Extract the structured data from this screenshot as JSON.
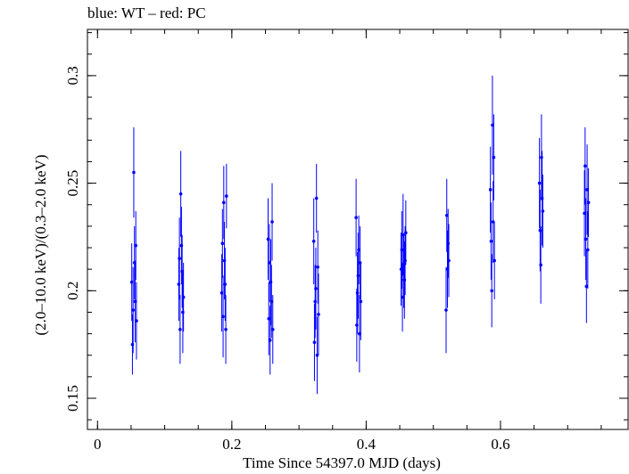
{
  "chart_data": {
    "type": "scatter",
    "title": "blue: WT – red: PC",
    "xlabel": "Time Since 54397.0 MJD (days)",
    "ylabel": "(2.0–10.0 keV)/(0.3–2.0 keV)",
    "xlim": [
      -0.015,
      0.79
    ],
    "ylim": [
      0.1355,
      0.3215
    ],
    "x_ticks": [
      "0",
      "0.2",
      "0.4",
      "0.6"
    ],
    "y_ticks": [
      "0.15",
      "0.2",
      "0.25",
      "0.3"
    ],
    "grid": false,
    "series": [
      {
        "color": "#0000ff",
        "marker": "dot-with-errorbars",
        "x": [
          0.051,
          0.052,
          0.053,
          0.054,
          0.055,
          0.056,
          0.057,
          0.058,
          0.121,
          0.122,
          0.123,
          0.124,
          0.125,
          0.126,
          0.127,
          0.128,
          0.185,
          0.186,
          0.187,
          0.188,
          0.189,
          0.19,
          0.191,
          0.192,
          0.254,
          0.255,
          0.256,
          0.257,
          0.258,
          0.259,
          0.26,
          0.261,
          0.322,
          0.323,
          0.324,
          0.325,
          0.326,
          0.327,
          0.328,
          0.329,
          0.385,
          0.386,
          0.387,
          0.388,
          0.389,
          0.39,
          0.391,
          0.392,
          0.452,
          0.453,
          0.454,
          0.455,
          0.456,
          0.457,
          0.458,
          0.459,
          0.519,
          0.52,
          0.521,
          0.522,
          0.523,
          0.585,
          0.586,
          0.587,
          0.588,
          0.589,
          0.59,
          0.591,
          0.658,
          0.659,
          0.66,
          0.661,
          0.662,
          0.663,
          0.725,
          0.726,
          0.727,
          0.728,
          0.729,
          0.73,
          0.731
        ],
        "y": [
          0.204,
          0.175,
          0.191,
          0.255,
          0.213,
          0.195,
          0.221,
          0.186,
          0.203,
          0.215,
          0.182,
          0.245,
          0.221,
          0.209,
          0.19,
          0.197,
          0.199,
          0.222,
          0.188,
          0.241,
          0.214,
          0.203,
          0.182,
          0.244,
          0.224,
          0.187,
          0.213,
          0.177,
          0.204,
          0.195,
          0.232,
          0.182,
          0.223,
          0.176,
          0.195,
          0.201,
          0.243,
          0.17,
          0.211,
          0.189,
          0.234,
          0.184,
          0.199,
          0.207,
          0.219,
          0.18,
          0.213,
          0.195,
          0.21,
          0.219,
          0.197,
          0.226,
          0.209,
          0.205,
          0.214,
          0.227,
          0.191,
          0.235,
          0.21,
          0.222,
          0.214,
          0.247,
          0.223,
          0.2,
          0.277,
          0.232,
          0.262,
          0.214,
          0.25,
          0.228,
          0.212,
          0.262,
          0.243,
          0.237,
          0.236,
          0.258,
          0.224,
          0.202,
          0.247,
          0.219,
          0.241
        ],
        "yerr": [
          0.018,
          0.014,
          0.02,
          0.021,
          0.017,
          0.019,
          0.016,
          0.018,
          0.017,
          0.019,
          0.016,
          0.02,
          0.018,
          0.017,
          0.019,
          0.016,
          0.018,
          0.016,
          0.019,
          0.017,
          0.018,
          0.017,
          0.016,
          0.015,
          0.019,
          0.017,
          0.018,
          0.016,
          0.02,
          0.017,
          0.018,
          0.016,
          0.02,
          0.018,
          0.017,
          0.019,
          0.016,
          0.018,
          0.017,
          0.019,
          0.018,
          0.017,
          0.019,
          0.02,
          0.016,
          0.018,
          0.017,
          0.018,
          0.017,
          0.018,
          0.016,
          0.019,
          0.017,
          0.018,
          0.016,
          0.015,
          0.02,
          0.017,
          0.018,
          0.016,
          0.017,
          0.02,
          0.018,
          0.017,
          0.023,
          0.019,
          0.02,
          0.018,
          0.021,
          0.019,
          0.018,
          0.02,
          0.022,
          0.017,
          0.02,
          0.018,
          0.019,
          0.017,
          0.021,
          0.018,
          0.016
        ]
      }
    ]
  }
}
